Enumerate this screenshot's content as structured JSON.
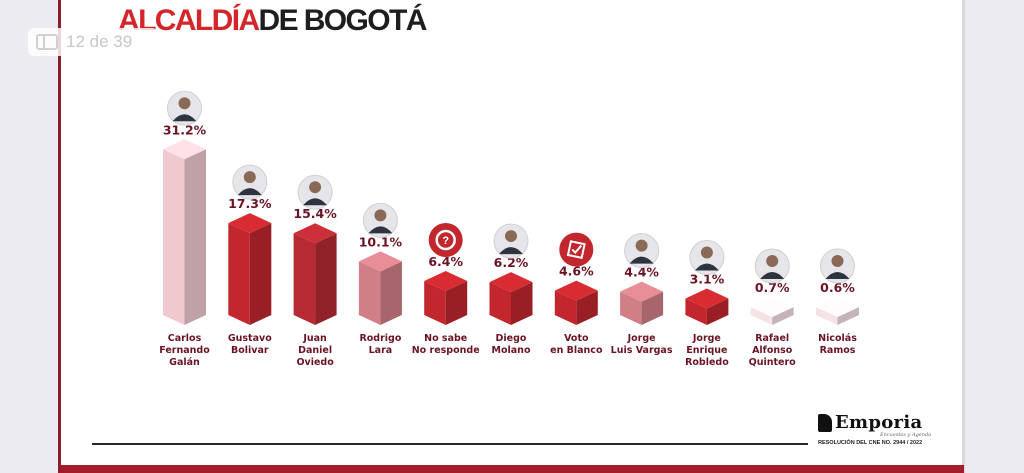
{
  "header": {
    "title_accent": "ALCALDÍA",
    "title_rest": "DE BOGOTÁ"
  },
  "pager": {
    "label": "12 de 39",
    "icon": "sidebar-icon"
  },
  "footer": {
    "logo_text": "Emporia",
    "logo_tagline": "Encuestas y Agenda",
    "resolution": "RESOLUCIÓN DEL CNE NO. 2944 / 2022"
  },
  "colors": {
    "pink_light": "#f0c9ce",
    "pink_lighter": "#f6e1e3",
    "red_main": "#c1272d",
    "red_mid": "#b72a34",
    "rose": "#d07f86",
    "accent": "#d4252a",
    "footer": "#a51c2c"
  },
  "chart_data": {
    "type": "bar",
    "categories": [
      "Carlos Fernando Galán",
      "Gustavo Bolívar",
      "Juan Daniel Oviedo",
      "Rodrigo Lara",
      "No sabe No responde",
      "Diego Molano",
      "Voto en Blanco",
      "Jorge Luis Vargas",
      "Jorge Enrique Robledo",
      "Rafael Alfonso Quintero",
      "Nicolás Ramos"
    ],
    "label_lines": [
      [
        "Carlos",
        "Fernando",
        "Galán"
      ],
      [
        "Gustavo",
        "Bolivar"
      ],
      [
        "Juan",
        "Daniel",
        "Oviedo"
      ],
      [
        "Rodrigo",
        "Lara"
      ],
      [
        "No sabe",
        "No responde"
      ],
      [
        "Diego",
        "Molano"
      ],
      [
        "Voto",
        "en Blanco"
      ],
      [
        "Jorge",
        "Luis Vargas"
      ],
      [
        "Jorge",
        "Enrique",
        "Robledo"
      ],
      [
        "Rafael",
        "Alfonso",
        "Quintero"
      ],
      [
        "Nicolás",
        "Ramos"
      ]
    ],
    "values": [
      31.2,
      17.3,
      15.4,
      10.1,
      6.4,
      6.2,
      4.6,
      4.4,
      3.1,
      0.7,
      0.6
    ],
    "value_labels": [
      "31.2%",
      "17.3%",
      "15.4%",
      "10.1%",
      "6.4%",
      "6.2%",
      "4.6%",
      "4.4%",
      "3.1%",
      "0.7%",
      "0.6%"
    ],
    "bar_colors": [
      "#f0c9ce",
      "#c1272d",
      "#b72a34",
      "#d07f86",
      "#c1272d",
      "#c1272d",
      "#c1272d",
      "#d07f86",
      "#c1272d",
      "#f6e1e3",
      "#f6e1e3"
    ],
    "avatar_icons": [
      "person",
      "person",
      "person",
      "person",
      "question",
      "person",
      "ballot",
      "person",
      "person",
      "person",
      "person"
    ],
    "unit": "%",
    "ylim": [
      0,
      32
    ],
    "grid": false,
    "legend": "none"
  }
}
